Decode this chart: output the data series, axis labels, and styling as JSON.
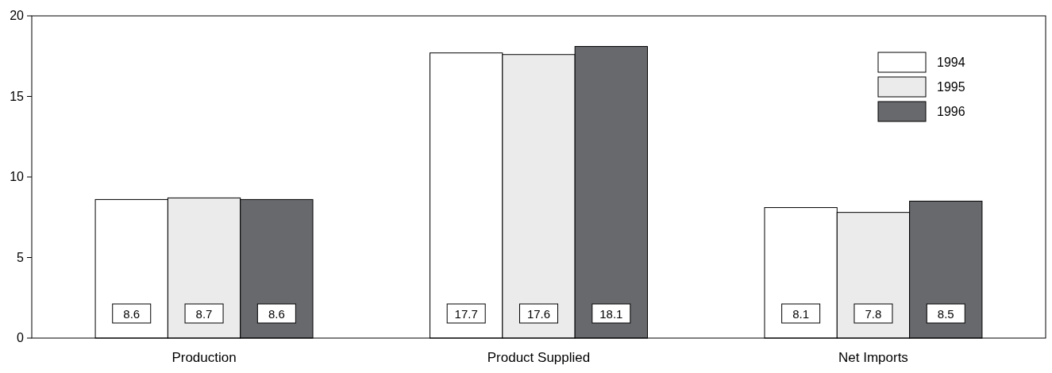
{
  "chart_data": {
    "type": "bar",
    "categories": [
      "Production",
      "Product Supplied",
      "Net Imports"
    ],
    "series": [
      {
        "name": "1994",
        "color": "#ffffff",
        "values": [
          8.6,
          17.7,
          8.1
        ]
      },
      {
        "name": "1995",
        "color": "#ebebeb",
        "values": [
          8.7,
          17.6,
          7.8
        ]
      },
      {
        "name": "1996",
        "color": "#68696d",
        "values": [
          8.6,
          18.1,
          8.5
        ]
      }
    ],
    "ylim": [
      0,
      20
    ],
    "yticks": [
      0,
      5,
      10,
      15,
      20
    ],
    "data_labels": true,
    "legend": "top right",
    "grid": false
  }
}
